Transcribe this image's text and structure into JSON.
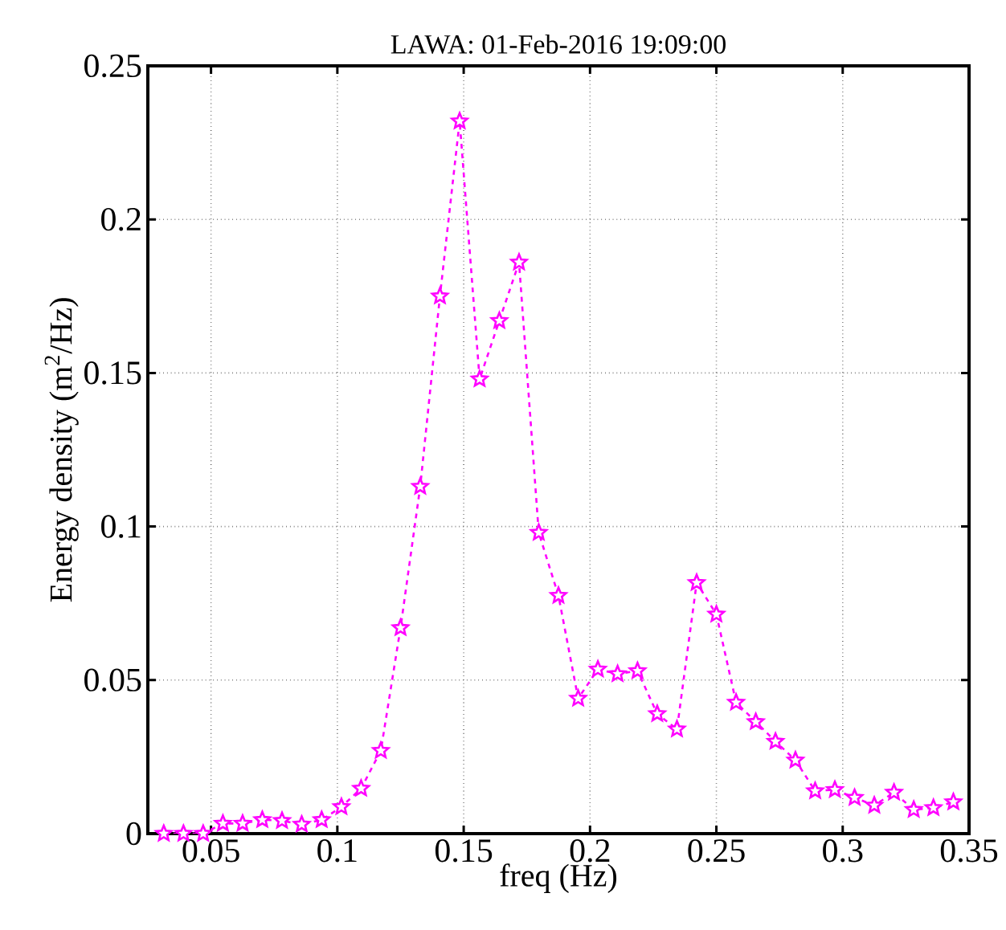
{
  "chart_data": {
    "type": "line",
    "title": "LAWA: 01-Feb-2016 19:09:00",
    "xlabel": "freq (Hz)",
    "ylabel": "Energy density (m$^{2}$/Hz)",
    "x": [
      0.0313,
      0.0391,
      0.0469,
      0.0547,
      0.0625,
      0.0703,
      0.0781,
      0.0859,
      0.0938,
      0.1016,
      0.1094,
      0.1172,
      0.125,
      0.1328,
      0.1406,
      0.1484,
      0.1563,
      0.1641,
      0.1719,
      0.1797,
      0.1875,
      0.1953,
      0.2031,
      0.2109,
      0.2188,
      0.2266,
      0.2344,
      0.2422,
      0.25,
      0.2578,
      0.2656,
      0.2734,
      0.2813,
      0.2891,
      0.2969,
      0.3047,
      0.3125,
      0.3203,
      0.3281,
      0.3359,
      0.3438
    ],
    "series": [
      {
        "color": "#ff00ff",
        "values": [
          0,
          0,
          0,
          0.0033,
          0.0033,
          0.0045,
          0.0042,
          0.003,
          0.0045,
          0.0087,
          0.0147,
          0.027,
          0.067,
          0.113,
          0.175,
          0.232,
          0.148,
          0.167,
          0.186,
          0.098,
          0.0775,
          0.044,
          0.0535,
          0.052,
          0.053,
          0.039,
          0.034,
          0.0817,
          0.0714,
          0.0427,
          0.0364,
          0.03,
          0.0239,
          0.0139,
          0.0143,
          0.0117,
          0.0092,
          0.0134,
          0.0078,
          0.0084,
          0.0103
        ]
      }
    ],
    "xlim": [
      0.025,
      0.35
    ],
    "ylim": [
      0,
      0.25
    ],
    "xticks": [
      0.05,
      0.1,
      0.15,
      0.2,
      0.25,
      0.3,
      0.35
    ],
    "yticks": [
      0,
      0.05,
      0.1,
      0.15,
      0.2,
      0.25
    ],
    "grid": true,
    "marker": "star",
    "line_style": "dashed"
  }
}
